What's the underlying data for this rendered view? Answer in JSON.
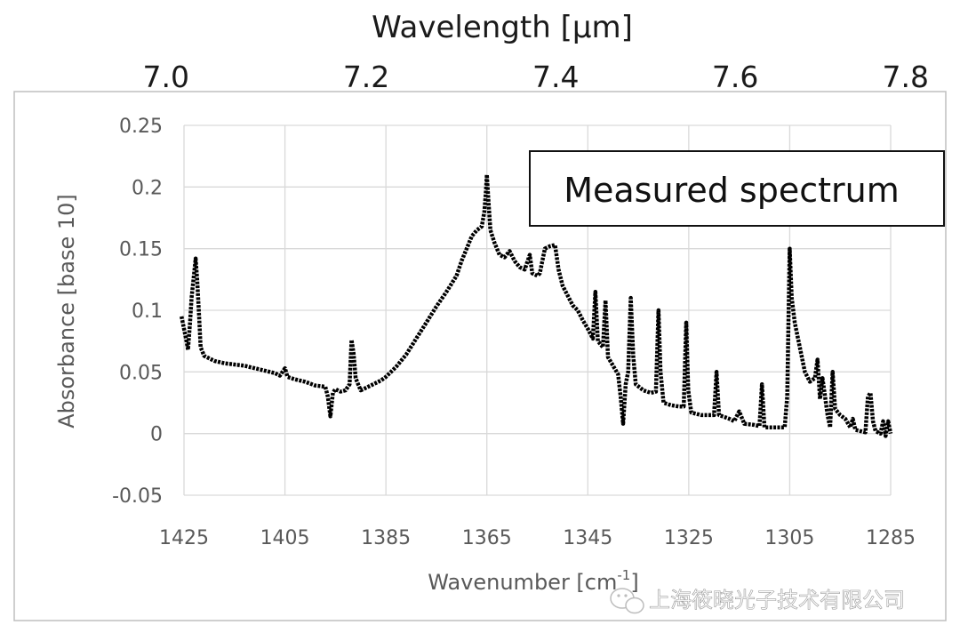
{
  "chart_data": {
    "type": "line",
    "top_axis": {
      "label": "Wavelength  [µm]",
      "ticks": [
        "7.0",
        "7.2",
        "7.4",
        "7.6",
        "7.8"
      ],
      "tick_values": [
        7.0,
        7.2,
        7.4,
        7.6,
        7.8
      ]
    },
    "xlabel": "Wavenumber [cm",
    "xlabel_sup": "-1",
    "xlabel_end": "]",
    "ylabel": "Absorbance  [base 10]",
    "xlim": [
      1425,
      1285
    ],
    "ylim": [
      -0.05,
      0.25
    ],
    "x_ticks": [
      1425,
      1405,
      1385,
      1365,
      1345,
      1325,
      1305,
      1285
    ],
    "x_tick_labels": [
      "1425",
      "1405",
      "1385",
      "1365",
      "1345",
      "1325",
      "1305",
      "1285"
    ],
    "y_ticks": [
      0.25,
      0.2,
      0.15,
      0.1,
      0.05,
      0,
      -0.05
    ],
    "y_tick_labels": [
      "0.25",
      "0.2",
      "0.15",
      "0.1",
      "0.05",
      "0",
      "-0.05"
    ],
    "grid": true,
    "legend_box": "Measured spectrum",
    "series": [
      {
        "name": "Measured spectrum",
        "color": "#000000",
        "points": [
          [
            1425.5,
            0.095
          ],
          [
            1425.0,
            0.085
          ],
          [
            1424.5,
            0.075
          ],
          [
            1424.2,
            0.068
          ],
          [
            1423.8,
            0.09
          ],
          [
            1423.5,
            0.11
          ],
          [
            1423.0,
            0.13
          ],
          [
            1422.7,
            0.142
          ],
          [
            1422.4,
            0.125
          ],
          [
            1422.0,
            0.095
          ],
          [
            1421.7,
            0.07
          ],
          [
            1421.0,
            0.063
          ],
          [
            1419.0,
            0.059
          ],
          [
            1417.0,
            0.057
          ],
          [
            1415.0,
            0.056
          ],
          [
            1413.0,
            0.055
          ],
          [
            1411.0,
            0.053
          ],
          [
            1409.0,
            0.051
          ],
          [
            1407.0,
            0.049
          ],
          [
            1406.0,
            0.047
          ],
          [
            1405.0,
            0.053
          ],
          [
            1404.5,
            0.046
          ],
          [
            1403.0,
            0.044
          ],
          [
            1401.0,
            0.042
          ],
          [
            1399.0,
            0.039
          ],
          [
            1397.0,
            0.038
          ],
          [
            1396.5,
            0.03
          ],
          [
            1396.0,
            0.014
          ],
          [
            1395.5,
            0.033
          ],
          [
            1395.0,
            0.036
          ],
          [
            1394.0,
            0.034
          ],
          [
            1393.0,
            0.035
          ],
          [
            1392.2,
            0.04
          ],
          [
            1391.8,
            0.076
          ],
          [
            1391.4,
            0.065
          ],
          [
            1391.0,
            0.045
          ],
          [
            1390.5,
            0.04
          ],
          [
            1390.0,
            0.035
          ],
          [
            1389.0,
            0.037
          ],
          [
            1388.0,
            0.039
          ],
          [
            1386.0,
            0.043
          ],
          [
            1385.0,
            0.046
          ],
          [
            1383.0,
            0.054
          ],
          [
            1381.0,
            0.064
          ],
          [
            1379.0,
            0.077
          ],
          [
            1377.0,
            0.09
          ],
          [
            1375.0,
            0.103
          ],
          [
            1373.0,
            0.115
          ],
          [
            1371.0,
            0.128
          ],
          [
            1370.0,
            0.14
          ],
          [
            1369.0,
            0.15
          ],
          [
            1368.0,
            0.16
          ],
          [
            1367.0,
            0.165
          ],
          [
            1366.0,
            0.168
          ],
          [
            1365.5,
            0.18
          ],
          [
            1365.2,
            0.196
          ],
          [
            1365.0,
            0.21
          ],
          [
            1364.7,
            0.19
          ],
          [
            1364.3,
            0.165
          ],
          [
            1363.5,
            0.155
          ],
          [
            1362.5,
            0.145
          ],
          [
            1361.5,
            0.143
          ],
          [
            1360.5,
            0.148
          ],
          [
            1359.5,
            0.14
          ],
          [
            1358.5,
            0.135
          ],
          [
            1357.5,
            0.133
          ],
          [
            1356.5,
            0.145
          ],
          [
            1356.0,
            0.13
          ],
          [
            1355.0,
            0.128
          ],
          [
            1354.5,
            0.13
          ],
          [
            1353.5,
            0.15
          ],
          [
            1352.5,
            0.152
          ],
          [
            1351.5,
            0.153
          ],
          [
            1350.8,
            0.133
          ],
          [
            1350.0,
            0.12
          ],
          [
            1349.0,
            0.112
          ],
          [
            1348.0,
            0.104
          ],
          [
            1347.0,
            0.1
          ],
          [
            1346.0,
            0.092
          ],
          [
            1345.0,
            0.085
          ],
          [
            1344.0,
            0.077
          ],
          [
            1343.5,
            0.115
          ],
          [
            1343.0,
            0.075
          ],
          [
            1342.0,
            0.07
          ],
          [
            1341.5,
            0.108
          ],
          [
            1341.0,
            0.062
          ],
          [
            1340.0,
            0.055
          ],
          [
            1339.0,
            0.048
          ],
          [
            1338.5,
            0.03
          ],
          [
            1338.0,
            0.008
          ],
          [
            1337.5,
            0.04
          ],
          [
            1337.0,
            0.05
          ],
          [
            1336.5,
            0.11
          ],
          [
            1336.0,
            0.063
          ],
          [
            1335.5,
            0.04
          ],
          [
            1334.0,
            0.035
          ],
          [
            1332.5,
            0.033
          ],
          [
            1331.5,
            0.034
          ],
          [
            1331.0,
            0.1
          ],
          [
            1330.6,
            0.05
          ],
          [
            1330.0,
            0.025
          ],
          [
            1328.5,
            0.023
          ],
          [
            1327.0,
            0.022
          ],
          [
            1326.0,
            0.022
          ],
          [
            1325.5,
            0.09
          ],
          [
            1325.1,
            0.035
          ],
          [
            1324.5,
            0.017
          ],
          [
            1322.5,
            0.015
          ],
          [
            1320.0,
            0.015
          ],
          [
            1319.5,
            0.05
          ],
          [
            1319.0,
            0.015
          ],
          [
            1317.0,
            0.012
          ],
          [
            1316.0,
            0.01
          ],
          [
            1315.0,
            0.018
          ],
          [
            1314.0,
            0.008
          ],
          [
            1312.0,
            0.007
          ],
          [
            1311.0,
            0.006
          ],
          [
            1310.5,
            0.04
          ],
          [
            1310.0,
            0.005
          ],
          [
            1308.0,
            0.005
          ],
          [
            1306.0,
            0.005
          ],
          [
            1305.5,
            0.03
          ],
          [
            1305.0,
            0.15
          ],
          [
            1304.6,
            0.11
          ],
          [
            1304.0,
            0.09
          ],
          [
            1303.0,
            0.07
          ],
          [
            1302.0,
            0.05
          ],
          [
            1301.0,
            0.042
          ],
          [
            1300.0,
            0.045
          ],
          [
            1299.5,
            0.06
          ],
          [
            1299.0,
            0.028
          ],
          [
            1298.5,
            0.045
          ],
          [
            1298.0,
            0.03
          ],
          [
            1297.5,
            0.015
          ],
          [
            1297.0,
            0.005
          ],
          [
            1296.5,
            0.05
          ],
          [
            1296.0,
            0.02
          ],
          [
            1295.0,
            0.015
          ],
          [
            1294.0,
            0.012
          ],
          [
            1293.0,
            0.005
          ],
          [
            1292.5,
            0.012
          ],
          [
            1292.0,
            0.003
          ],
          [
            1291.0,
            0.002
          ],
          [
            1290.0,
            0.001
          ],
          [
            1289.5,
            0.03
          ],
          [
            1289.0,
            0.033
          ],
          [
            1288.5,
            0.01
          ],
          [
            1288.0,
            0.002
          ],
          [
            1287.0,
            0.0
          ],
          [
            1286.5,
            0.01
          ],
          [
            1286.0,
            -0.002
          ],
          [
            1285.5,
            0.01
          ],
          [
            1285.0,
            0.0
          ]
        ]
      }
    ]
  },
  "watermark": {
    "text": "上海筱晓光子技术有限公司"
  }
}
